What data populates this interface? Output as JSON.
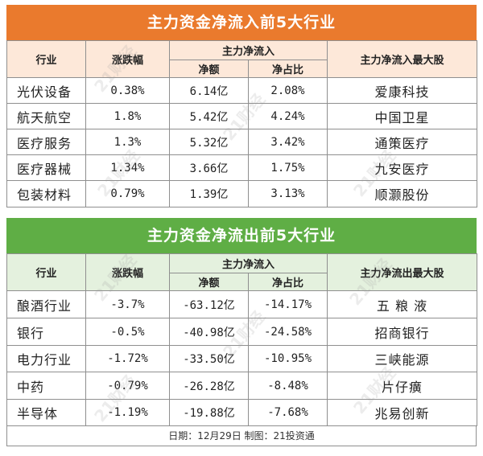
{
  "inflow": {
    "title": "主力资金净流入前5大行业",
    "headers": {
      "industry": "行业",
      "change": "涨跌幅",
      "main_group": "主力净流入",
      "net": "净额",
      "ratio": "净占比",
      "top_stock": "主力净流入最大股"
    },
    "rows": [
      {
        "industry": "光伏设备",
        "change": "0.38%",
        "net": "6.14亿",
        "ratio": "2.08%",
        "stock": "爱康科技"
      },
      {
        "industry": "航天航空",
        "change": "1.8%",
        "net": "5.42亿",
        "ratio": "4.24%",
        "stock": "中国卫星"
      },
      {
        "industry": "医疗服务",
        "change": "1.3%",
        "net": "5.32亿",
        "ratio": "3.42%",
        "stock": "通策医疗"
      },
      {
        "industry": "医疗器械",
        "change": "1.34%",
        "net": "3.66亿",
        "ratio": "1.75%",
        "stock": "九安医疗"
      },
      {
        "industry": "包装材料",
        "change": "0.79%",
        "net": "1.39亿",
        "ratio": "3.13%",
        "stock": "顺灏股份"
      }
    ]
  },
  "outflow": {
    "title": "主力资金净流出前5大行业",
    "headers": {
      "industry": "行业",
      "change": "涨跌幅",
      "main_group": "主力净流入",
      "net": "净额",
      "ratio": "净占比",
      "top_stock": "主力净流出最大股"
    },
    "rows": [
      {
        "industry": "酿酒行业",
        "change": "-3.7%",
        "net": "-63.12亿",
        "ratio": "-14.17%",
        "stock": "五 粮 液"
      },
      {
        "industry": "银行",
        "change": "-0.5%",
        "net": "-40.98亿",
        "ratio": "-24.58%",
        "stock": "招商银行"
      },
      {
        "industry": "电力行业",
        "change": "-1.72%",
        "net": "-33.50亿",
        "ratio": "-10.95%",
        "stock": "三峡能源"
      },
      {
        "industry": "中药",
        "change": "-0.79%",
        "net": "-26.28亿",
        "ratio": "-8.48%",
        "stock": "片仔癀"
      },
      {
        "industry": "半导体",
        "change": "-1.19%",
        "net": "-19.88亿",
        "ratio": "-7.68%",
        "stock": "兆易创新"
      }
    ]
  },
  "footer": "日期：12月29日  制图：21投资通",
  "watermark": "21财经",
  "colors": {
    "inflow_header": "#ea7a2d",
    "inflow_subheader": "#fde8d9",
    "outflow_header": "#5fae45",
    "outflow_subheader": "#e4f1de"
  }
}
